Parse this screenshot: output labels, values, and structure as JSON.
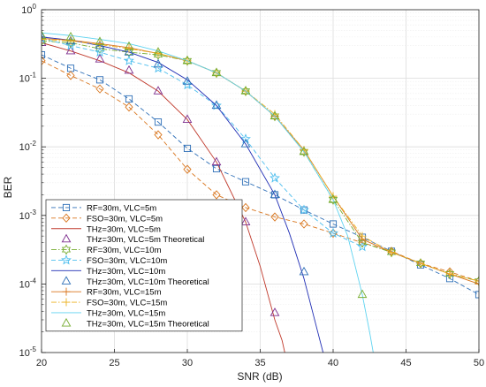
{
  "chart_data": {
    "type": "line",
    "xlabel": "SNR (dB)",
    "ylabel": "BER",
    "xlim": [
      20,
      50
    ],
    "ylim": [
      1e-05,
      1
    ],
    "yscale": "log",
    "grid": true,
    "legend_position": "bottom-left",
    "x_ticks": [
      "20",
      "25",
      "30",
      "35",
      "40",
      "45",
      "50"
    ],
    "y_ticks": [
      {
        "base": "10",
        "exp": "0"
      },
      {
        "base": "10",
        "exp": "-1"
      },
      {
        "base": "10",
        "exp": "-2"
      },
      {
        "base": "10",
        "exp": "-3"
      },
      {
        "base": "10",
        "exp": "-4"
      },
      {
        "base": "10",
        "exp": "-5"
      }
    ],
    "series": [
      {
        "name": "RF=30m, VLC=5m",
        "color": "#2E6FB7",
        "dash": "dash",
        "marker": "square",
        "x": [
          20,
          22,
          24,
          26,
          28,
          30,
          32,
          34,
          36,
          38,
          40,
          42,
          44,
          46,
          48,
          50
        ],
        "y": [
          0.22,
          0.14,
          0.095,
          0.05,
          0.023,
          0.0095,
          0.0048,
          0.0031,
          0.002,
          0.0012,
          0.00075,
          0.00048,
          0.0003,
          0.00019,
          0.00012,
          7e-05
        ]
      },
      {
        "name": "FSO=30m, VLC=5m",
        "color": "#D9761E",
        "dash": "dash",
        "marker": "diamond",
        "x": [
          20,
          22,
          24,
          26,
          28,
          30,
          32,
          34,
          36,
          38,
          40,
          42,
          44,
          46,
          48,
          50
        ],
        "y": [
          0.18,
          0.11,
          0.07,
          0.038,
          0.015,
          0.0047,
          0.002,
          0.0013,
          0.00095,
          0.00075,
          0.00055,
          0.0004,
          0.0003,
          0.0002,
          0.00015,
          0.00011
        ]
      },
      {
        "name": "THz=30m, VLC=5m",
        "color": "#C0392B",
        "dash": "solid",
        "marker": "none",
        "x": [
          20,
          22,
          24,
          26,
          28,
          30,
          32,
          34,
          35,
          36,
          36.5,
          37
        ],
        "y": [
          0.33,
          0.25,
          0.18,
          0.12,
          0.065,
          0.025,
          0.006,
          0.0008,
          0.00018,
          3e-05,
          1.5e-05,
          5e-06
        ]
      },
      {
        "name": "THz=30m, VLC=5m Theoretical",
        "color": "#7E2F8E",
        "dash": "none",
        "marker": "triangle",
        "x": [
          20,
          22,
          24,
          26,
          28,
          30,
          32,
          34,
          36
        ],
        "y": [
          0.33,
          0.25,
          0.19,
          0.13,
          0.065,
          0.025,
          0.006,
          0.0008,
          3.8e-05
        ]
      },
      {
        "name": "RF=30m, VLC=10m",
        "color": "#77AC30",
        "dash": "dashdot",
        "marker": "hexagram",
        "x": [
          20,
          22,
          24,
          26,
          28,
          30,
          32,
          34,
          36,
          38,
          40,
          42,
          44,
          46,
          48,
          50
        ],
        "y": [
          0.35,
          0.33,
          0.27,
          0.24,
          0.22,
          0.18,
          0.12,
          0.065,
          0.028,
          0.0085,
          0.0017,
          0.0004,
          0.00029,
          0.0002,
          0.00014,
          0.00011
        ]
      },
      {
        "name": "FSO=30m, VLC=10m",
        "color": "#4DBEEE",
        "dash": "dash",
        "marker": "star",
        "x": [
          20,
          22,
          24,
          26,
          28,
          30,
          32,
          34,
          36,
          38,
          40,
          42
        ],
        "y": [
          0.38,
          0.3,
          0.24,
          0.18,
          0.14,
          0.08,
          0.04,
          0.013,
          0.0035,
          0.0012,
          0.00055,
          0.00035
        ]
      },
      {
        "name": "THz=30m, VLC=10m",
        "color": "#1F2DB4",
        "dash": "solid",
        "marker": "none",
        "x": [
          20,
          22,
          24,
          26,
          28,
          30,
          32,
          34,
          36,
          37,
          38,
          39,
          39.5
        ],
        "y": [
          0.4,
          0.36,
          0.3,
          0.24,
          0.17,
          0.095,
          0.04,
          0.011,
          0.002,
          0.00055,
          0.00012,
          1.8e-05,
          7e-06
        ]
      },
      {
        "name": "THz=30m, VLC=10m Theoretical",
        "color": "#2E6FB7",
        "dash": "none",
        "marker": "triangle",
        "x": [
          20,
          22,
          24,
          26,
          28,
          30,
          32,
          34,
          36,
          38
        ],
        "y": [
          0.41,
          0.35,
          0.3,
          0.24,
          0.16,
          0.09,
          0.04,
          0.011,
          0.002,
          0.00015
        ]
      },
      {
        "name": "RF=30m, VLC=15m",
        "color": "#D9761E",
        "dash": "solid",
        "marker": "plus",
        "x": [
          20,
          22,
          24,
          26,
          28,
          30,
          32,
          34,
          36,
          38,
          40,
          42,
          44,
          46,
          48,
          50
        ],
        "y": [
          0.38,
          0.36,
          0.32,
          0.28,
          0.23,
          0.18,
          0.12,
          0.065,
          0.028,
          0.009,
          0.0019,
          0.00045,
          0.00029,
          0.0002,
          0.00014,
          0.0001
        ]
      },
      {
        "name": "FSO=30m, VLC=15m",
        "color": "#EDB120",
        "dash": "dashdot",
        "marker": "plus",
        "x": [
          20,
          22,
          24,
          26,
          28,
          30,
          32,
          34,
          36,
          38,
          40,
          42,
          44,
          46,
          48,
          50
        ],
        "y": [
          0.37,
          0.35,
          0.31,
          0.27,
          0.23,
          0.18,
          0.12,
          0.065,
          0.03,
          0.009,
          0.0019,
          0.0005,
          0.00029,
          0.0002,
          0.00014,
          0.00011
        ]
      },
      {
        "name": "THz=30m, VLC=15m",
        "color": "#5FD3F0",
        "dash": "solid",
        "marker": "none",
        "x": [
          20,
          22,
          24,
          26,
          28,
          30,
          32,
          34,
          36,
          38,
          40,
          41,
          42,
          42.5,
          43
        ],
        "y": [
          0.46,
          0.42,
          0.37,
          0.32,
          0.25,
          0.18,
          0.12,
          0.065,
          0.028,
          0.0085,
          0.0017,
          0.0005,
          7e-05,
          2e-05,
          5e-06
        ]
      },
      {
        "name": "THz=30m, VLC=15m Theoretical",
        "color": "#77AC30",
        "dash": "none",
        "marker": "triangle",
        "x": [
          20,
          22,
          24,
          26,
          28,
          30,
          32,
          34,
          36,
          38,
          40,
          42
        ],
        "y": [
          0.42,
          0.4,
          0.34,
          0.29,
          0.24,
          0.18,
          0.12,
          0.065,
          0.028,
          0.0085,
          0.0017,
          7e-05
        ]
      }
    ]
  }
}
